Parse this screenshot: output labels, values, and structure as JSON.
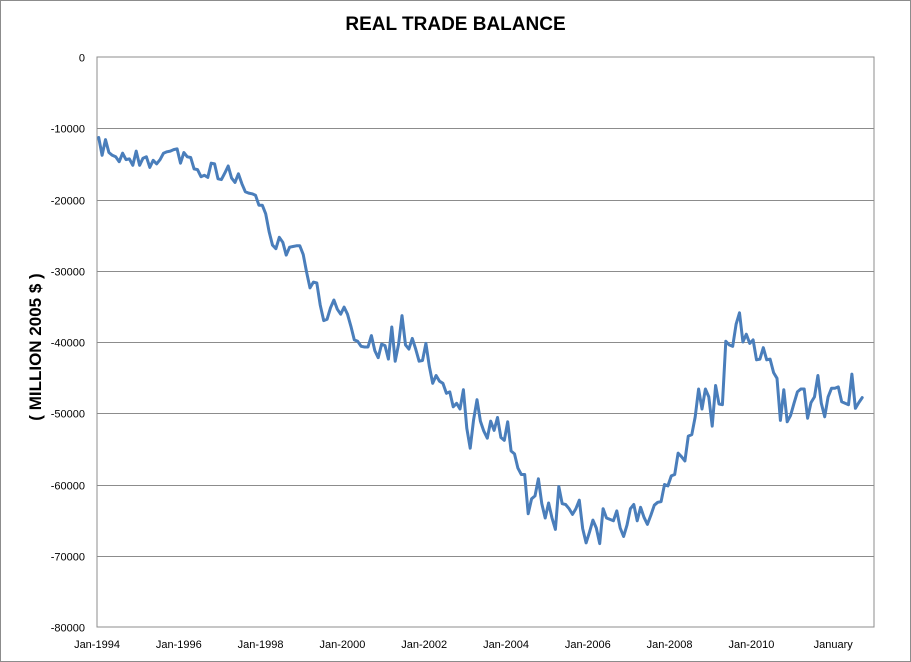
{
  "chart_data": {
    "type": "line",
    "title": "REAL TRADE BALANCE",
    "xlabel": "",
    "ylabel": "( MILLION 2005 $ )",
    "ylim": [
      -80000,
      0
    ],
    "yticks": [
      0,
      -10000,
      -20000,
      -30000,
      -40000,
      -50000,
      -60000,
      -70000,
      -80000
    ],
    "xticks": [
      "Jan-1994",
      "Jan-1996",
      "Jan-1998",
      "Jan-2000",
      "Jan-2002",
      "Jan-2004",
      "Jan-2006",
      "Jan-2008",
      "Jan-2010",
      "January"
    ],
    "grid": true,
    "legend": "none",
    "line_color": "#4a7ebb",
    "series": [
      {
        "start": "Jan-1994",
        "frequency": "monthly",
        "values": [
          -11300,
          -13800,
          -11600,
          -13400,
          -13800,
          -14000,
          -14700,
          -13500,
          -14400,
          -14300,
          -15200,
          -13200,
          -15200,
          -14200,
          -14000,
          -15500,
          -14500,
          -15000,
          -14400,
          -13500,
          -13300,
          -13200,
          -13000,
          -12900,
          -14900,
          -13400,
          -14000,
          -14100,
          -15700,
          -15800,
          -16800,
          -16600,
          -16900,
          -14900,
          -15000,
          -17100,
          -17200,
          -16300,
          -15300,
          -17000,
          -17600,
          -16400,
          -17800,
          -18900,
          -19100,
          -19200,
          -19400,
          -20800,
          -20800,
          -22000,
          -24500,
          -26400,
          -26900,
          -25300,
          -26000,
          -27800,
          -26700,
          -26600,
          -26500,
          -26500,
          -27700,
          -30200,
          -32400,
          -31600,
          -31700,
          -34800,
          -37000,
          -36800,
          -35200,
          -34100,
          -35400,
          -36100,
          -35100,
          -36100,
          -37800,
          -39700,
          -39900,
          -40600,
          -40700,
          -40700,
          -39100,
          -41200,
          -42200,
          -40300,
          -40500,
          -42400,
          -37900,
          -42700,
          -40300,
          -36300,
          -40400,
          -41000,
          -39500,
          -41000,
          -42700,
          -42600,
          -40200,
          -43400,
          -45800,
          -44700,
          -45500,
          -45800,
          -47200,
          -47000,
          -49100,
          -48600,
          -49400,
          -46700,
          -52100,
          -54900,
          -50900,
          -48100,
          -51100,
          -52500,
          -53500,
          -51100,
          -52400,
          -50600,
          -53400,
          -53800,
          -51200,
          -55300,
          -55700,
          -57700,
          -58600,
          -58600,
          -64100,
          -62000,
          -61600,
          -59200,
          -62700,
          -64700,
          -62600,
          -64700,
          -66300,
          -60300,
          -62700,
          -62800,
          -63400,
          -64200,
          -63400,
          -62200,
          -66200,
          -68200,
          -66700,
          -65000,
          -66100,
          -68300,
          -63400,
          -64700,
          -64900,
          -65100,
          -63700,
          -66100,
          -67300,
          -65700,
          -63400,
          -62800,
          -65100,
          -63200,
          -64600,
          -65600,
          -64300,
          -62900,
          -62500,
          -62400,
          -60000,
          -60200,
          -58800,
          -58600,
          -55600,
          -56100,
          -56700,
          -53200,
          -53000,
          -50500,
          -46600,
          -49400,
          -46600,
          -47700,
          -51800,
          -46100,
          -48700,
          -48800,
          -39900,
          -40400,
          -40600,
          -37500,
          -35900,
          -40000,
          -38900,
          -40200,
          -39700,
          -42500,
          -42400,
          -40800,
          -42500,
          -42400,
          -44300,
          -45100,
          -51000,
          -46700,
          -51200,
          -50300,
          -48600,
          -47000,
          -46600,
          -46600,
          -50700,
          -48500,
          -47700,
          -44700,
          -48600,
          -50500,
          -47700,
          -46500,
          -46500,
          -46300,
          -48400,
          -48600,
          -48800,
          -44500,
          -49300,
          -48500,
          -47800
        ]
      }
    ]
  }
}
